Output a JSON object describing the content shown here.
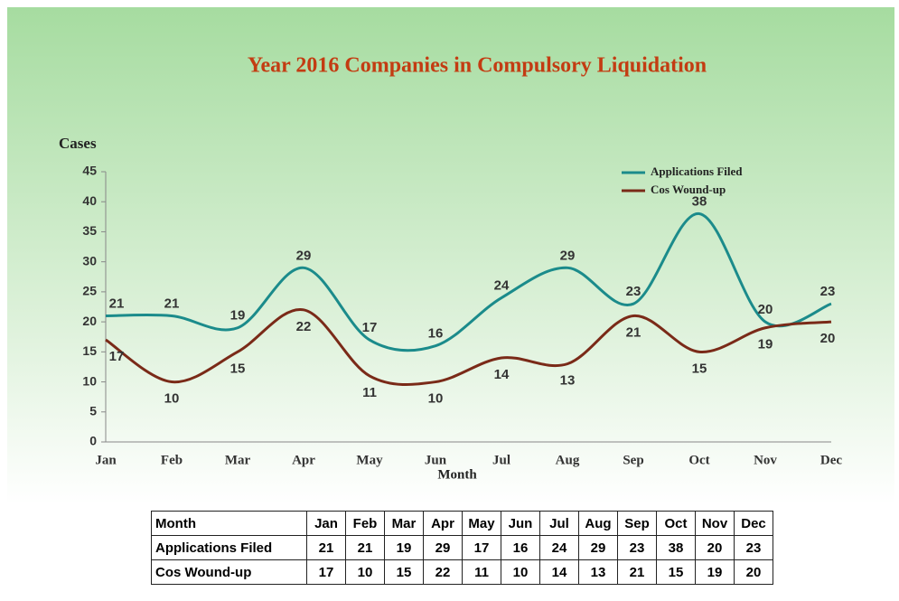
{
  "chart_data": {
    "type": "line",
    "title": "Year 2016 Companies in Compulsory Liquidation",
    "y_label": "Cases",
    "x_label": "Month",
    "categories": [
      "Jan",
      "Feb",
      "Mar",
      "Apr",
      "May",
      "Jun",
      "Jul",
      "Aug",
      "Sep",
      "Oct",
      "Nov",
      "Dec"
    ],
    "series": [
      {
        "name": "Applications Filed",
        "color": "#1b8b8b",
        "values": [
          21,
          21,
          19,
          29,
          17,
          16,
          24,
          29,
          23,
          38,
          20,
          23
        ]
      },
      {
        "name": "Cos Wound-up",
        "color": "#7a2a18",
        "values": [
          17,
          10,
          15,
          22,
          11,
          10,
          14,
          13,
          21,
          15,
          19,
          20
        ]
      }
    ],
    "ylim": [
      0,
      45
    ],
    "yticks": [
      0,
      5,
      10,
      15,
      20,
      25,
      30,
      35,
      40,
      45
    ],
    "legend": "upper right",
    "smooth": true
  }
}
